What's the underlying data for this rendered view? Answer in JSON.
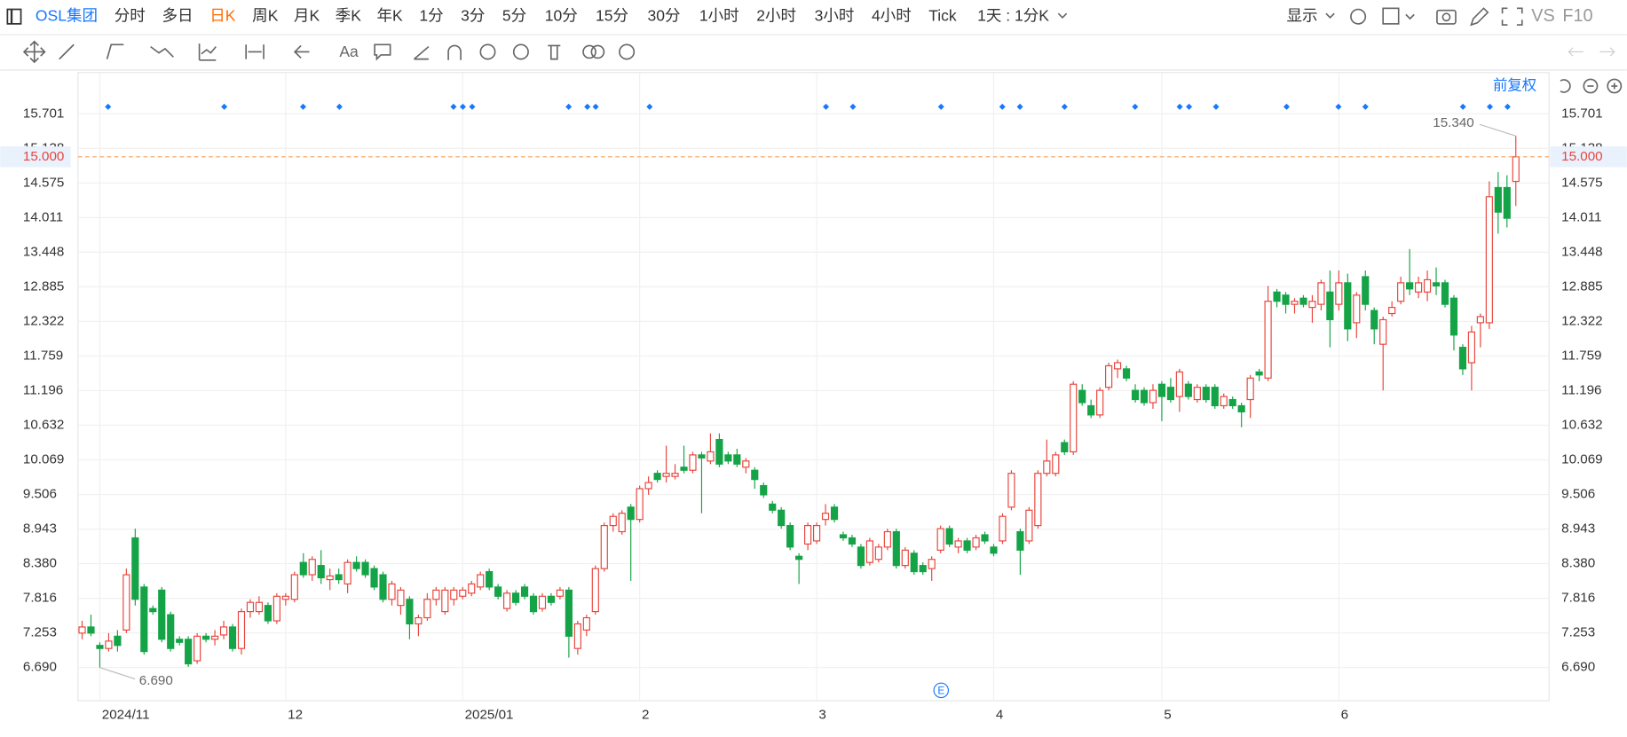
{
  "toolbar": {
    "symbol": "OSL集团",
    "periods": [
      "分时",
      "多日",
      "日K",
      "周K",
      "月K",
      "季K",
      "年K",
      "1分",
      "3分",
      "5分",
      "10分",
      "15分",
      "30分",
      "1小时",
      "2小时",
      "3小时",
      "4小时",
      "Tick"
    ],
    "setting": "1天 : 1分K",
    "display": "显示",
    "vs": "VS",
    "f10": "F10",
    "text_tool": "Aa"
  },
  "chart_data": {
    "type": "candlestick",
    "adjust_label": "前复权",
    "event_label": "E",
    "categories": [
      null,
      null,
      "2024/11",
      null,
      null,
      null,
      null,
      null,
      null,
      null,
      null,
      null,
      null,
      null,
      null,
      null,
      null,
      null,
      null,
      null,
      null,
      null,
      null,
      "12",
      null,
      null,
      null,
      null,
      null,
      null,
      null,
      null,
      null,
      null,
      null,
      null,
      null,
      null,
      null,
      null,
      null,
      null,
      null,
      "2025/01",
      null,
      null,
      null,
      null,
      null,
      null,
      null,
      null,
      null,
      null,
      null,
      null,
      null,
      null,
      null,
      null,
      null,
      null,
      null,
      "2",
      null,
      null,
      null,
      null,
      null,
      null,
      null,
      null,
      null,
      null,
      null,
      null,
      null,
      null,
      null,
      null,
      null,
      null,
      null,
      "3",
      null,
      null,
      null,
      null,
      null,
      null,
      null,
      null,
      null,
      null,
      null,
      null,
      null,
      null,
      null,
      null,
      null,
      null,
      null,
      "4",
      null,
      null,
      null,
      null,
      null,
      null,
      null,
      null,
      null,
      null,
      null,
      null,
      null,
      null,
      null,
      null,
      null,
      null,
      "5",
      null,
      null,
      null,
      null,
      null,
      null,
      null,
      null,
      null,
      null,
      null,
      null,
      null,
      null,
      null,
      null,
      null,
      null,
      null,
      "6",
      null,
      null,
      null,
      null,
      null,
      null,
      null,
      null,
      null,
      null,
      null,
      null,
      null,
      null,
      null,
      null,
      null,
      null,
      null,
      null
    ],
    "open": [
      7.25,
      7.35,
      7.05,
      7.0,
      7.2,
      7.3,
      8.8,
      8.0,
      7.65,
      7.95,
      7.55,
      7.15,
      7.15,
      6.8,
      7.2,
      7.15,
      7.22,
      7.35,
      7.0,
      7.6,
      7.6,
      7.7,
      7.45,
      7.8,
      7.8,
      8.4,
      8.2,
      8.35,
      8.12,
      8.2,
      8.05,
      8.4,
      8.4,
      8.3,
      8.2,
      7.8,
      7.7,
      7.8,
      7.4,
      7.5,
      7.8,
      7.6,
      7.8,
      7.85,
      7.9,
      8.0,
      8.25,
      8.0,
      7.65,
      7.9,
      8.0,
      7.85,
      7.65,
      7.85,
      7.85,
      7.95,
      7.0,
      7.3,
      7.6,
      8.3,
      9.0,
      8.9,
      9.3,
      9.1,
      9.6,
      9.85,
      9.8,
      9.8,
      9.95,
      9.9,
      10.15,
      10.05,
      10.4,
      10.15,
      10.15,
      9.95,
      9.9,
      9.65,
      9.35,
      9.25,
      9.0,
      8.5,
      8.7,
      8.75,
      9.1,
      9.3,
      8.85,
      8.8,
      8.65,
      8.4,
      8.45,
      8.65,
      8.9,
      8.35,
      8.55,
      8.35,
      8.3,
      8.6,
      8.95,
      8.65,
      8.75,
      8.65,
      8.85,
      8.65,
      8.75,
      9.3,
      8.9,
      8.75,
      9.0,
      9.85,
      9.85,
      10.35,
      10.2,
      11.2,
      10.95,
      10.8,
      11.25,
      11.55,
      11.55,
      11.2,
      11.2,
      11.0,
      11.3,
      11.25,
      11.1,
      11.3,
      11.05,
      11.25,
      11.25,
      10.95,
      11.05,
      10.95,
      11.05,
      11.5,
      11.4,
      12.8,
      12.75,
      12.6,
      12.7,
      12.55,
      12.6,
      12.8,
      12.6,
      12.95,
      12.3,
      13.05,
      12.5,
      11.95,
      12.45,
      12.65,
      12.95,
      12.8,
      12.8,
      12.95,
      12.95,
      12.7,
      11.9,
      11.65,
      12.3,
      12.3,
      14.5,
      14.5,
      14.6
    ],
    "high": [
      7.45,
      7.55,
      7.1,
      7.25,
      7.3,
      8.3,
      8.95,
      8.05,
      7.7,
      8.0,
      7.6,
      7.2,
      7.2,
      7.25,
      7.25,
      7.3,
      7.45,
      7.4,
      7.65,
      7.8,
      7.85,
      7.75,
      7.9,
      7.9,
      8.25,
      8.55,
      8.5,
      8.6,
      8.3,
      8.3,
      8.45,
      8.5,
      8.45,
      8.35,
      8.25,
      8.1,
      8.0,
      7.85,
      7.55,
      7.9,
      8.0,
      8.0,
      8.0,
      8.0,
      8.1,
      8.25,
      8.3,
      8.05,
      7.95,
      7.95,
      8.05,
      7.9,
      7.9,
      7.9,
      8.0,
      8.0,
      7.45,
      7.55,
      8.35,
      9.05,
      9.2,
      9.25,
      9.35,
      9.65,
      9.8,
      9.9,
      10.3,
      10.0,
      10.3,
      10.2,
      10.2,
      10.5,
      10.5,
      10.2,
      10.25,
      10.1,
      9.95,
      9.7,
      9.4,
      9.3,
      9.05,
      8.55,
      9.05,
      9.05,
      9.35,
      9.35,
      8.9,
      8.85,
      8.7,
      8.8,
      8.7,
      8.95,
      8.95,
      8.65,
      8.6,
      8.4,
      8.5,
      9.0,
      9.0,
      8.8,
      8.8,
      8.85,
      8.9,
      8.7,
      9.2,
      9.9,
      8.95,
      9.3,
      9.9,
      10.4,
      10.2,
      10.4,
      11.35,
      11.3,
      11.05,
      11.25,
      11.65,
      11.7,
      11.6,
      11.3,
      11.25,
      11.3,
      11.35,
      11.4,
      11.55,
      11.35,
      11.3,
      11.3,
      11.3,
      11.15,
      11.1,
      11.0,
      11.45,
      11.55,
      12.9,
      12.85,
      12.8,
      12.7,
      12.75,
      12.75,
      13.0,
      13.15,
      13.15,
      13.1,
      12.8,
      13.15,
      12.55,
      12.4,
      12.65,
      13.05,
      13.5,
      13.05,
      13.15,
      13.2,
      13.0,
      12.75,
      11.95,
      12.25,
      12.45,
      14.6,
      14.75,
      14.7,
      15.34
    ],
    "low": [
      7.15,
      7.2,
      6.69,
      6.95,
      6.95,
      7.25,
      7.7,
      6.9,
      7.55,
      7.1,
      6.95,
      7.05,
      6.7,
      6.75,
      7.1,
      7.05,
      7.15,
      6.95,
      6.9,
      7.5,
      7.55,
      7.4,
      7.4,
      7.7,
      7.75,
      8.15,
      8.1,
      8.05,
      7.95,
      8.05,
      7.9,
      8.25,
      8.15,
      7.95,
      7.75,
      7.7,
      7.55,
      7.15,
      7.2,
      7.45,
      7.7,
      7.55,
      7.7,
      7.8,
      7.85,
      7.95,
      7.95,
      7.8,
      7.6,
      7.7,
      7.8,
      7.55,
      7.6,
      7.7,
      7.8,
      6.85,
      6.9,
      7.2,
      7.55,
      8.25,
      8.9,
      8.85,
      8.1,
      9.05,
      9.5,
      9.7,
      9.7,
      9.75,
      9.85,
      9.85,
      9.2,
      10.0,
      9.95,
      10.0,
      9.95,
      9.85,
      9.6,
      9.45,
      9.2,
      8.95,
      8.6,
      8.05,
      8.6,
      8.7,
      9.0,
      9.05,
      8.75,
      8.65,
      8.3,
      8.35,
      8.4,
      8.6,
      8.3,
      8.3,
      8.2,
      8.2,
      8.1,
      8.55,
      8.65,
      8.55,
      8.55,
      8.6,
      8.7,
      8.5,
      8.7,
      9.25,
      8.2,
      8.7,
      8.95,
      9.8,
      9.8,
      10.15,
      10.15,
      10.95,
      10.75,
      10.75,
      11.2,
      11.4,
      11.35,
      11.0,
      10.95,
      10.9,
      10.7,
      11.0,
      10.85,
      11.05,
      11.0,
      11.0,
      10.9,
      10.9,
      10.9,
      10.6,
      10.75,
      11.35,
      11.35,
      12.55,
      12.45,
      12.45,
      12.55,
      12.3,
      12.5,
      11.9,
      12.5,
      12.0,
      12.05,
      12.5,
      11.95,
      11.2,
      12.4,
      12.6,
      12.75,
      12.7,
      12.65,
      12.75,
      12.55,
      11.85,
      11.45,
      11.2,
      11.9,
      12.2,
      13.75,
      13.85,
      14.2
    ],
    "close": [
      7.35,
      7.25,
      7.0,
      7.12,
      7.05,
      8.2,
      7.8,
      6.95,
      7.6,
      7.15,
      7.0,
      7.1,
      6.75,
      7.2,
      7.15,
      7.2,
      7.35,
      7.0,
      7.6,
      7.75,
      7.75,
      7.45,
      7.85,
      7.85,
      8.2,
      8.2,
      8.45,
      8.15,
      8.18,
      8.12,
      8.4,
      8.3,
      8.2,
      8.0,
      7.8,
      8.05,
      7.95,
      7.4,
      7.5,
      7.8,
      7.95,
      7.95,
      7.95,
      7.95,
      8.05,
      8.2,
      8.0,
      7.85,
      7.9,
      7.75,
      7.85,
      7.6,
      7.85,
      7.75,
      7.95,
      7.2,
      7.4,
      7.5,
      8.3,
      9.0,
      9.15,
      9.2,
      9.1,
      9.6,
      9.7,
      9.75,
      9.85,
      9.85,
      9.9,
      10.15,
      10.1,
      10.2,
      10.0,
      10.05,
      10.0,
      10.05,
      9.75,
      9.5,
      9.25,
      9.0,
      8.65,
      8.45,
      9.0,
      9.0,
      9.2,
      9.1,
      8.8,
      8.7,
      8.35,
      8.75,
      8.65,
      8.9,
      8.35,
      8.6,
      8.25,
      8.25,
      8.45,
      8.95,
      8.7,
      8.75,
      8.6,
      8.8,
      8.75,
      8.55,
      9.15,
      9.85,
      8.6,
      9.25,
      9.85,
      10.05,
      10.15,
      10.2,
      11.3,
      11.0,
      10.8,
      11.2,
      11.6,
      11.65,
      11.4,
      11.05,
      11.0,
      11.2,
      11.1,
      11.05,
      11.5,
      11.1,
      11.25,
      11.05,
      10.95,
      11.1,
      10.95,
      10.85,
      11.4,
      11.45,
      12.65,
      12.65,
      12.6,
      12.65,
      12.6,
      12.65,
      12.95,
      12.35,
      12.95,
      12.2,
      12.75,
      12.6,
      12.2,
      12.35,
      12.55,
      12.95,
      12.85,
      12.95,
      13.0,
      12.9,
      12.6,
      12.1,
      11.55,
      12.15,
      12.4,
      14.35,
      14.1,
      14.0,
      15.0
    ],
    "up_color": "#e8453c",
    "down_color": "#14a447",
    "ylim": [
      6.15,
      16.0
    ],
    "yticks": [
      {
        "value": 6.69,
        "label": "6.690"
      },
      7.253,
      7.816,
      {
        "value": 8.38,
        "label": "8.380"
      },
      8.943,
      9.506,
      10.069,
      10.632,
      11.196,
      11.759,
      12.322,
      12.885,
      13.448,
      14.011,
      14.575,
      15.138,
      15.701
    ],
    "grid": true,
    "current_price": {
      "value": 15,
      "label": "15.000"
    },
    "min_label": {
      "value": 6.69,
      "label": "6.690"
    },
    "max_label": {
      "value": 15.34,
      "label": "15.340"
    }
  }
}
